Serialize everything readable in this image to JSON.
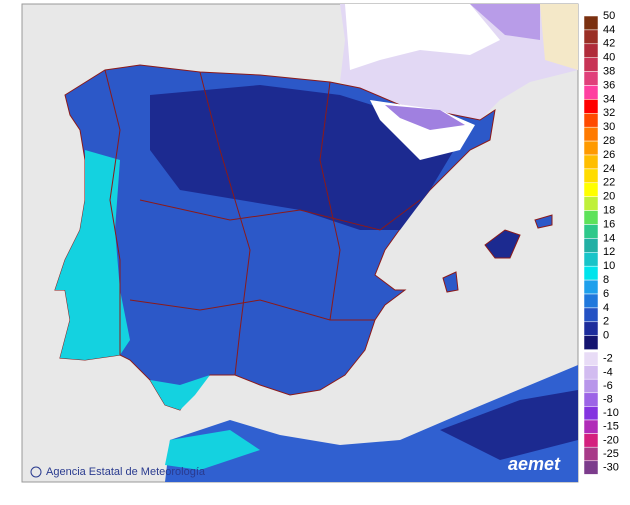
{
  "credit": "Agencia Estatal de Meteorología",
  "logo": "aemet",
  "legend": {
    "positive": [
      {
        "value": 50,
        "color": "#7a3010"
      },
      {
        "value": 44,
        "color": "#9a2f25"
      },
      {
        "value": 42,
        "color": "#b02c3a"
      },
      {
        "value": 40,
        "color": "#c83456"
      },
      {
        "value": 38,
        "color": "#e0407a"
      },
      {
        "value": 36,
        "color": "#ff3fa0"
      },
      {
        "value": 34,
        "color": "#ff0000"
      },
      {
        "value": 32,
        "color": "#ff4a00"
      },
      {
        "value": 30,
        "color": "#ff7a00"
      },
      {
        "value": 28,
        "color": "#ff9a00"
      },
      {
        "value": 26,
        "color": "#ffbe00"
      },
      {
        "value": 24,
        "color": "#ffdc00"
      },
      {
        "value": 22,
        "color": "#ffff00"
      },
      {
        "value": 20,
        "color": "#bff03a"
      },
      {
        "value": 18,
        "color": "#5ee25a"
      },
      {
        "value": 16,
        "color": "#2ec88a"
      },
      {
        "value": 14,
        "color": "#22b0a4"
      },
      {
        "value": 12,
        "color": "#18c4c8"
      },
      {
        "value": 10,
        "color": "#00e4ec"
      },
      {
        "value": 8,
        "color": "#1ea0ec"
      },
      {
        "value": 6,
        "color": "#2078dc"
      },
      {
        "value": 4,
        "color": "#2452c4"
      },
      {
        "value": 2,
        "color": "#1c2c9c"
      },
      {
        "value": 0,
        "color": "#141470"
      }
    ],
    "negative": [
      {
        "value": -2,
        "color": "#e8dcf6"
      },
      {
        "value": -4,
        "color": "#d2bcf0"
      },
      {
        "value": -6,
        "color": "#b896ea"
      },
      {
        "value": -8,
        "color": "#9c64e6"
      },
      {
        "value": -10,
        "color": "#8434e0"
      },
      {
        "value": -15,
        "color": "#b02cb8"
      },
      {
        "value": -20,
        "color": "#d4207e"
      },
      {
        "value": -25,
        "color": "#a83a88"
      },
      {
        "value": -30,
        "color": "#7c3c8c"
      }
    ]
  }
}
